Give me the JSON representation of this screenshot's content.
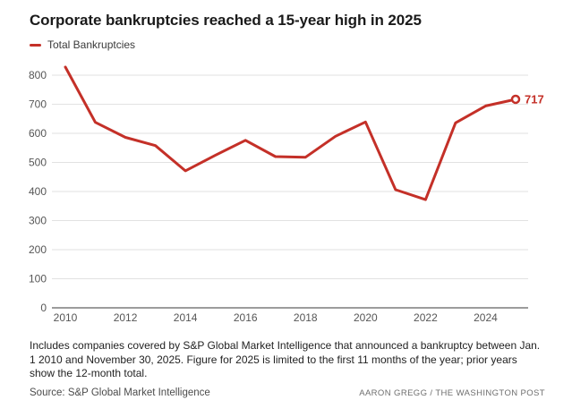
{
  "header": {
    "title": "Corporate bankruptcies reached a 15-year high in 2025"
  },
  "legend": {
    "label": "Total Bankruptcies"
  },
  "chart_data": {
    "type": "line",
    "title": "Corporate bankruptcies reached a 15-year high in 2025",
    "x": [
      2010,
      2011,
      2012,
      2013,
      2014,
      2015,
      2016,
      2017,
      2018,
      2019,
      2020,
      2021,
      2022,
      2023,
      2024,
      2025
    ],
    "series": [
      {
        "name": "Total Bankruptcies",
        "color": "#c43028",
        "values": [
          828,
          638,
          586,
          558,
          471,
          525,
          576,
          520,
          518,
          590,
          639,
          406,
          372,
          636,
          694,
          717
        ]
      }
    ],
    "xticks": [
      2010,
      2012,
      2014,
      2016,
      2018,
      2020,
      2022,
      2024
    ],
    "yticks": [
      0,
      100,
      200,
      300,
      400,
      500,
      600,
      700,
      800
    ],
    "xlim": [
      2010,
      2025
    ],
    "ylim": [
      0,
      800
    ],
    "xlabel": "",
    "ylabel": "",
    "grid": true,
    "legend_position": "top-left",
    "end_point": {
      "x": 2025,
      "value": 717,
      "label": "717",
      "marker": "open-circle"
    }
  },
  "footer": {
    "note": "Includes companies covered by S&P Global Market Intelligence that announced a bankruptcy between Jan. 1 2010 and November 30, 2025. Figure for 2025 is limited to the first 11 months of the year; prior years show the 12-month total.",
    "source": "Source: S&P Global Market Intelligence",
    "credit": "AARON GREGG / THE WASHINGTON POST"
  },
  "colors": {
    "accent_red": "#c43028",
    "grid_line": "#e2e2e2",
    "axis_line": "#9c9c9c",
    "tick_text": "#565656",
    "background": "#ffffff"
  }
}
